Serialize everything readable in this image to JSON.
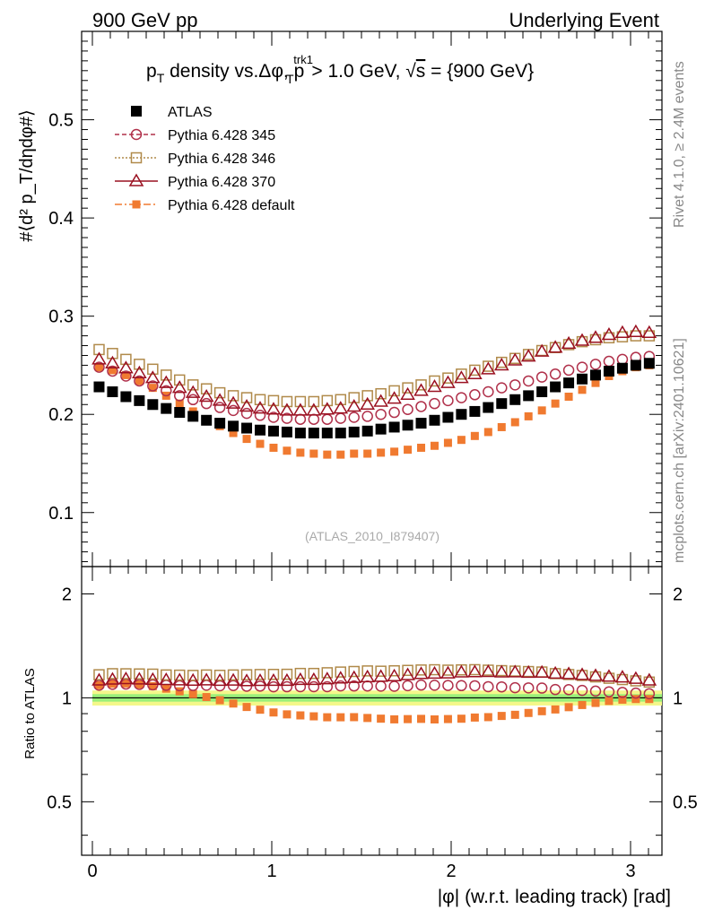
{
  "header": {
    "left": "900 GeV pp",
    "right": "Underlying Event"
  },
  "side_labels": {
    "rivet": "Rivet 4.1.0, ≥ 2.4M events",
    "mcplots": "mcplots.cern.ch [arXiv:2401.10621]"
  },
  "title_parts": {
    "p": "p",
    "T": "T",
    "mid": " density vs.Δφ, p",
    "trk1": "trk1",
    "T2": "T",
    "tail": " > 1.0 GeV, ",
    "sqrt": "√",
    "s": "s",
    "energy": " = {900 GeV}"
  },
  "ylabel_main": "#⟨d² p_T/dηdφ#⟩",
  "ylabel_ratio": "Ratio to ATLAS",
  "xlabel": "|φ| (w.r.t. leading track) [rad]",
  "watermark": "(ATLAS_2010_I879407)",
  "legend": [
    {
      "key": "atlas",
      "label": "ATLAS"
    },
    {
      "key": "p345",
      "label": "Pythia 6.428 345"
    },
    {
      "key": "p346",
      "label": "Pythia 6.428 346"
    },
    {
      "key": "p370",
      "label": "Pythia 6.428 370"
    },
    {
      "key": "pdef",
      "label": "Pythia 6.428 default"
    }
  ],
  "colors": {
    "atlas": "#000000",
    "p345": "#b0304a",
    "p346": "#b08a4a",
    "p370": "#9a1020",
    "pdef": "#f07a30",
    "band_outer": "#f4f78a",
    "band_inner": "#9af07a"
  },
  "chart_data": {
    "type": "scatter",
    "title": "p_T density vs.Δφ, p_T^trk1 > 1.0 GeV, √s = {900 GeV}",
    "xlabel": "|φ| (w.r.t. leading track) [rad]",
    "ylabel": "#⟨d² p_T/dηdφ#⟩",
    "xlim": [
      -0.06,
      3.2
    ],
    "ylim": [
      0.045,
      0.59
    ],
    "ratio_ylim": [
      0.35,
      2.4
    ],
    "x_ticks": [
      "0",
      "1",
      "2",
      "3"
    ],
    "y_ticks": [
      "0.1",
      "0.2",
      "0.3",
      "0.4",
      "0.5"
    ],
    "ratio_ticks": [
      "0.5",
      "1",
      "2"
    ],
    "ratio_ticks_right": [
      "0.5",
      "1",
      "2"
    ],
    "band": {
      "outer": 0.05,
      "inner": 0.025
    },
    "series": [
      {
        "key": "atlas",
        "name": "ATLAS",
        "marker": "filled-square",
        "values": [
          0.228,
          0.223,
          0.218,
          0.214,
          0.21,
          0.206,
          0.202,
          0.198,
          0.194,
          0.191,
          0.188,
          0.186,
          0.184,
          0.183,
          0.182,
          0.181,
          0.181,
          0.181,
          0.181,
          0.182,
          0.183,
          0.185,
          0.187,
          0.189,
          0.191,
          0.194,
          0.197,
          0.2,
          0.203,
          0.207,
          0.211,
          0.215,
          0.219,
          0.223,
          0.228,
          0.232,
          0.236,
          0.24,
          0.244,
          0.247,
          0.25,
          0.252
        ]
      },
      {
        "key": "p345",
        "name": "Pythia 6.428 345",
        "marker": "open-circle",
        "values": [
          0.248,
          0.244,
          0.239,
          0.234,
          0.229,
          0.224,
          0.219,
          0.215,
          0.211,
          0.207,
          0.204,
          0.201,
          0.199,
          0.197,
          0.196,
          0.195,
          0.195,
          0.195,
          0.196,
          0.197,
          0.198,
          0.2,
          0.202,
          0.205,
          0.208,
          0.211,
          0.214,
          0.217,
          0.22,
          0.223,
          0.227,
          0.23,
          0.234,
          0.238,
          0.241,
          0.245,
          0.248,
          0.251,
          0.254,
          0.256,
          0.258,
          0.259
        ]
      },
      {
        "key": "p346",
        "name": "Pythia 6.428 346",
        "marker": "open-square",
        "values": [
          0.266,
          0.262,
          0.256,
          0.251,
          0.246,
          0.24,
          0.235,
          0.23,
          0.226,
          0.222,
          0.219,
          0.217,
          0.215,
          0.214,
          0.213,
          0.213,
          0.213,
          0.214,
          0.215,
          0.217,
          0.219,
          0.221,
          0.224,
          0.227,
          0.23,
          0.234,
          0.237,
          0.241,
          0.245,
          0.249,
          0.253,
          0.257,
          0.261,
          0.265,
          0.268,
          0.271,
          0.274,
          0.276,
          0.278,
          0.279,
          0.28,
          0.28
        ]
      },
      {
        "key": "p370",
        "name": "Pythia 6.428 370",
        "marker": "open-triangle",
        "values": [
          0.256,
          0.252,
          0.247,
          0.242,
          0.237,
          0.232,
          0.227,
          0.222,
          0.218,
          0.214,
          0.211,
          0.208,
          0.206,
          0.205,
          0.204,
          0.204,
          0.204,
          0.205,
          0.206,
          0.208,
          0.21,
          0.213,
          0.216,
          0.22,
          0.224,
          0.228,
          0.232,
          0.237,
          0.241,
          0.246,
          0.25,
          0.255,
          0.259,
          0.264,
          0.268,
          0.272,
          0.275,
          0.278,
          0.281,
          0.283,
          0.284,
          0.283
        ]
      },
      {
        "key": "pdef",
        "name": "Pythia 6.428 default",
        "marker": "filled-small-square",
        "values": [
          0.248,
          0.245,
          0.24,
          0.234,
          0.227,
          0.219,
          0.211,
          0.203,
          0.195,
          0.188,
          0.181,
          0.175,
          0.17,
          0.166,
          0.163,
          0.161,
          0.16,
          0.159,
          0.159,
          0.16,
          0.16,
          0.161,
          0.162,
          0.164,
          0.166,
          0.168,
          0.171,
          0.174,
          0.178,
          0.182,
          0.187,
          0.192,
          0.198,
          0.204,
          0.211,
          0.218,
          0.225,
          0.232,
          0.239,
          0.244,
          0.248,
          0.25
        ]
      }
    ]
  }
}
